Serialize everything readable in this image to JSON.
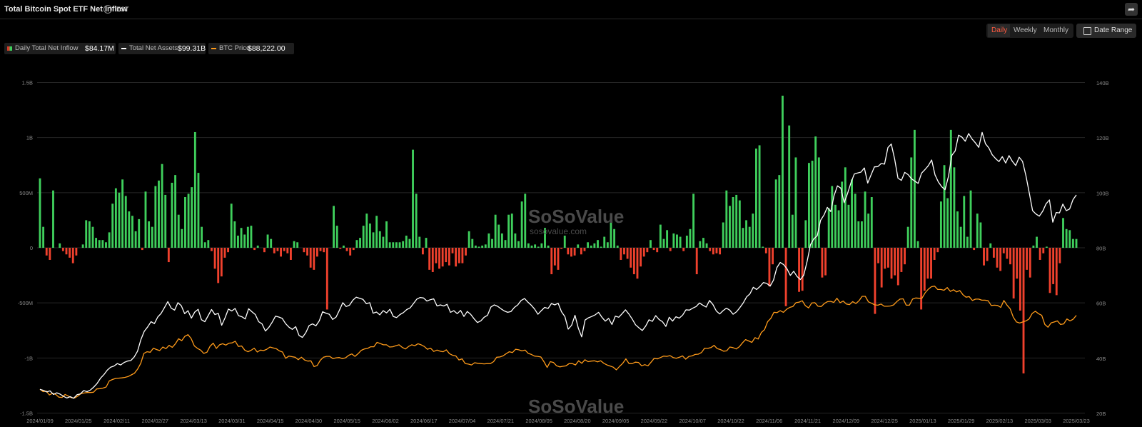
{
  "header": {
    "title": "Total Bitcoin Spot ETF Net Inflow",
    "timezone": "EST"
  },
  "controls": {
    "periods": [
      "Daily",
      "Weekly",
      "Monthly"
    ],
    "active_period": "Daily",
    "date_range_label": "Date Range"
  },
  "legend": [
    {
      "label": "Daily Total Net Inflow",
      "value": "$84.17M"
    },
    {
      "label": "Total Net Assets",
      "value": "$99.31B"
    },
    {
      "label": "BTC Price",
      "value": "$88,222.00"
    }
  ],
  "watermark": {
    "brand": "SoSoValue",
    "site": "sosovalue.com"
  },
  "colors": {
    "inflow_positive": "#3fcf5c",
    "inflow_negative": "#f0412d",
    "net_assets": "#ffffff",
    "btc_price": "#ff9b1a",
    "active_tab": "#ff5a40"
  },
  "chart_data": {
    "type": "bar+line",
    "left_axis": {
      "ticks": [
        "1.5B",
        "1B",
        "500M",
        "0",
        "-500M",
        "-1B",
        "-1.5B"
      ],
      "range": [
        -1.5,
        1.5
      ],
      "unit": "B USD"
    },
    "right_axis": {
      "ticks": [
        "140B",
        "120B",
        "100B",
        "80B",
        "60B",
        "40B",
        "20B"
      ],
      "range": [
        20,
        140
      ],
      "unit": "B USD"
    },
    "x_ticks": [
      "2024/01/09",
      "2024/01/25",
      "2024/02/11",
      "2024/02/27",
      "2024/03/13",
      "2024/03/31",
      "2024/04/15",
      "2024/04/30",
      "2024/05/15",
      "2024/06/02",
      "2024/06/17",
      "2024/07/04",
      "2024/07/21",
      "2024/08/05",
      "2024/08/20",
      "2024/09/05",
      "2024/09/22",
      "2024/10/07",
      "2024/10/22",
      "2024/11/06",
      "2024/11/21",
      "2024/12/09",
      "2024/12/25",
      "2025/01/13",
      "2025/01/29",
      "2025/02/13",
      "2025/03/03",
      "2025/03/23"
    ],
    "grid": true,
    "series": [
      {
        "name": "Daily Total Net Inflow",
        "kind": "bar",
        "axis": "left",
        "values": [
          0.63,
          0.19,
          -0.07,
          -0.11,
          0.52,
          0,
          0.04,
          -0.03,
          -0.06,
          -0.09,
          -0.14,
          -0.07,
          0,
          0.03,
          0.25,
          0.24,
          0.19,
          0.09,
          0.07,
          0.07,
          0.05,
          0.14,
          0.4,
          0.54,
          0.5,
          0.62,
          0.47,
          0.33,
          0.29,
          0.15,
          0.26,
          -0.02,
          0.51,
          0.24,
          0.19,
          0.56,
          0.61,
          0.76,
          0.48,
          -0.13,
          0.59,
          0.66,
          0.3,
          0.17,
          0.46,
          0.49,
          0.55,
          1.05,
          0.68,
          0.19,
          0.05,
          0.07,
          -0.03,
          -0.19,
          -0.32,
          -0.26,
          -0.09,
          -0.04,
          0.4,
          0.24,
          0.11,
          0.18,
          0.12,
          0.19,
          0.2,
          -0.02,
          0.02,
          0,
          -0.04,
          0.12,
          0.08,
          -0.05,
          -0.03,
          -0.08,
          -0.03,
          -0.05,
          -0.11,
          0.06,
          0.05,
          0,
          -0.04,
          -0.07,
          -0.18,
          -0.2,
          -0.08,
          -0.03,
          -0.04,
          -0.56,
          0,
          0.38,
          0.2,
          -0.01,
          0.02,
          -0.03,
          -0.07,
          -0.02,
          0.07,
          0.09,
          0.2,
          0.31,
          0.22,
          0.14,
          0.29,
          0.15,
          0.1,
          0.24,
          0.05,
          0.05,
          0.05,
          0.05,
          0.06,
          0.11,
          0.08,
          0.89,
          0.49,
          0.1,
          -0.06,
          0.09,
          -0.2,
          -0.22,
          -0.14,
          -0.19,
          -0.17,
          -0.13,
          -0.16,
          -0.05,
          -0.17,
          -0.14,
          -0.14,
          -0.07,
          0.15,
          0.08,
          0.02,
          0.01,
          0.02,
          0.03,
          0.13,
          0.08,
          0.3,
          0.21,
          0.13,
          0.07,
          0.3,
          0.31,
          0.13,
          0.06,
          0.42,
          0.49,
          0.04,
          0.02,
          0.03,
          0.01,
          0.04,
          0.18,
          0.02,
          -0.24,
          -0.16,
          -0.2,
          -0.01,
          0.11,
          -0.06,
          -0.08,
          -0.07,
          0.03,
          -0.06,
          -0.03,
          0.05,
          0.02,
          0.04,
          0.07,
          0.01,
          0.1,
          0.05,
          0.25,
          0.17,
          0.02,
          -0.11,
          -0.06,
          -0.1,
          -0.18,
          -0.24,
          -0.28,
          -0.17,
          -0.08,
          -0.04,
          0.07,
          -0.02,
          -0.04,
          0.21,
          0.08,
          0.16,
          -0.03,
          0.13,
          0.12,
          0.1,
          -0.03,
          0.11,
          0.17,
          0.49,
          -0.24,
          0.06,
          0.09,
          0.04,
          -0.03,
          -0.06,
          -0.05,
          -0.06,
          0.23,
          0.52,
          0.38,
          0.46,
          0.48,
          0.43,
          0.18,
          0.25,
          0.19,
          0.31,
          0.9,
          0.93,
          0.01,
          -0.05,
          -0.35,
          -0.15,
          0.62,
          0.66,
          1.38,
          -0.53,
          1.11,
          0.3,
          0.82,
          -0.4,
          -0.39,
          0.25,
          0.77,
          0.79,
          1.01,
          0.82,
          -0.27,
          -0.25,
          0.36,
          0.56,
          0.39,
          0.34,
          0.6,
          0.73,
          0.39,
          0.62,
          0.49,
          0.24,
          0.24,
          0.51,
          0.31,
          0.46,
          -0.6,
          -0.14,
          -0.36,
          -0.19,
          -0.18,
          -0.28,
          -0.25,
          -0.34,
          -0.22,
          -0.15,
          0.19,
          0.82,
          1.07,
          0.06,
          -0.56,
          -0.39,
          -0.28,
          -0.28,
          -0.11,
          -0.04,
          0.42,
          0.75,
          0.45,
          1.07,
          0.73,
          0.33,
          0.19,
          0.47,
          0.1,
          0.52,
          -0.02,
          0.31,
          0.23,
          -0.16,
          -0.12,
          0.04,
          -0.09,
          -0.18,
          -0.21,
          -0.05,
          -0.1,
          -0.15,
          -0.46,
          -0.28,
          -0.57,
          -1.14,
          -0.2,
          -0.27,
          0.02,
          0.1,
          -0.11,
          -0.05,
          0.01,
          -0.41,
          -0.33,
          -0.43,
          -0.14,
          0.27,
          0.17,
          0.16,
          0.08,
          0.08
        ]
      },
      {
        "name": "Total Net Assets",
        "kind": "line",
        "axis": "right",
        "values": [
          28.7,
          28.4,
          27.8,
          28.2,
          26.9,
          27.5,
          27.0,
          26.2,
          25.6,
          26.1,
          25.5,
          26.8,
          27.1,
          28.3,
          27.9,
          28.5,
          29.6,
          30.9,
          32.8,
          34.1,
          35.7,
          36.8,
          37.2,
          38.1,
          37.6,
          38.5,
          39.0,
          39.2,
          40.5,
          42.6,
          46.8,
          49.8,
          51.4,
          53.3,
          52.6,
          55.0,
          56.3,
          58.4,
          60.6,
          58.2,
          57.5,
          60.2,
          59.1,
          56.2,
          57.3,
          54.6,
          56.8,
          57.8,
          54.0,
          53.3,
          55.5,
          57.7,
          55.9,
          56.3,
          52.0,
          54.7,
          57.9,
          57.2,
          58.1,
          55.5,
          55.1,
          54.3,
          58.0,
          56.9,
          55.9,
          53.3,
          52.5,
          49.9,
          51.2,
          53.1,
          55.3,
          55.0,
          54.5,
          52.6,
          51.3,
          50.5,
          51.5,
          48.3,
          47.6,
          49.3,
          51.9,
          52.5,
          51.8,
          53.6,
          56.9,
          56.4,
          56.0,
          54.1,
          55.0,
          57.5,
          60.2,
          58.8,
          59.3,
          61.1,
          62.2,
          61.8,
          61.4,
          59.8,
          60.2,
          56.4,
          56.8,
          55.8,
          57.3,
          56.5,
          57.8,
          55.2,
          54.8,
          55.9,
          56.6,
          57.7,
          58.3,
          59.9,
          61.5,
          62.1,
          61.9,
          60.8,
          61.3,
          61.6,
          59.0,
          59.4,
          59.0,
          59.6,
          56.7,
          57.3,
          56.2,
          57.4,
          55.2,
          57.0,
          56.0,
          54.4,
          53.0,
          53.6,
          54.9,
          55.6,
          58.6,
          59.4,
          58.9,
          58.0,
          57.2,
          56.7,
          57.0,
          58.5,
          59.4,
          61.0,
          61.7,
          60.4,
          59.3,
          57.9,
          56.0,
          57.3,
          58.5,
          58.1,
          59.9,
          59.4,
          60.0,
          56.9,
          55.2,
          50.6,
          52.0,
          55.6,
          50.9,
          47.8,
          53.9,
          54.7,
          55.2,
          55.8,
          56.7,
          54.9,
          53.5,
          54.5,
          52.3,
          55.3,
          54.9,
          56.2,
          57.6,
          56.1,
          54.3,
          52.2,
          51.1,
          50.1,
          51.7,
          54.0,
          53.4,
          55.5,
          54.1,
          53.3,
          51.6,
          54.9,
          53.5,
          55.1,
          54.6,
          55.7,
          57.6,
          57.5,
          58.2,
          58.8,
          60.1,
          59.3,
          58.6,
          61.0,
          59.5,
          57.2,
          56.1,
          57.3,
          58.2,
          57.5,
          56.0,
          56.9,
          58.4,
          60.1,
          62.3,
          63.4,
          65.8,
          65.0,
          66.1,
          67.5,
          67.2,
          66.2,
          68.4,
          72.9,
          74.8,
          74.0,
          72.5,
          70.1,
          71.6,
          69.7,
          68.6,
          70.2,
          75.3,
          81.3,
          83.4,
          84.5,
          90.1,
          92.0,
          94.8,
          93.3,
          99.1,
          102.6,
          101.8,
          96.5,
          99.8,
          103.6,
          106.9,
          107.3,
          107.6,
          109.1,
          103.6,
          106.6,
          109.5,
          109.6,
          110.7,
          110.5,
          116.5,
          117.8,
          112.4,
          105.4,
          104.6,
          107.5,
          106.7,
          105.2,
          104.3,
          103.5,
          107.2,
          108.5,
          109.9,
          112.0,
          106.6,
          104.0,
          102.3,
          101.2,
          106.1,
          113.7,
          115.3,
          121.0,
          120.3,
          118.8,
          121.6,
          119.6,
          118.2,
          116.6,
          122.0,
          117.9,
          116.4,
          113.9,
          112.5,
          111.4,
          113.2,
          110.9,
          113.6,
          111.5,
          110.0,
          113.0,
          111.5,
          106.4,
          100.1,
          93.6,
          92.4,
          91.6,
          93.4,
          96.1,
          97.5,
          89.4,
          92.9,
          92.8,
          96.0,
          93.6,
          94.2,
          97.6,
          99.3
        ]
      },
      {
        "name": "BTC Price",
        "kind": "line",
        "axis": "right",
        "values": [
          28.8,
          27.9,
          28.1,
          26.7,
          27.3,
          26.9,
          25.9,
          25.8,
          26.9,
          26.3,
          25.7,
          25.6,
          26.3,
          27.2,
          27.4,
          27.6,
          27.6,
          27.7,
          28.9,
          29.0,
          29.2,
          29.6,
          31.8,
          32.3,
          32.7,
          32.8,
          32.9,
          33.1,
          33.4,
          34.0,
          34.6,
          36.1,
          38.2,
          41.8,
          42.4,
          42.2,
          43.7,
          43.2,
          42.8,
          44.1,
          43.5,
          44.7,
          44.0,
          45.3,
          47.1,
          46.4,
          48.0,
          48.6,
          47.2,
          44.5,
          43.6,
          43.0,
          41.8,
          42.2,
          44.4,
          45.5,
          43.6,
          44.9,
          45.3,
          44.8,
          45.5,
          45.6,
          46.2,
          44.3,
          44.5,
          43.0,
          42.4,
          42.9,
          43.7,
          42.3,
          43.0,
          42.8,
          43.3,
          44.1,
          43.8,
          43.5,
          42.7,
          42.3,
          40.0,
          40.8,
          40.6,
          40.4,
          39.5,
          40.4,
          39.4,
          39.0,
          39.1,
          37.0,
          37.4,
          39.3,
          40.4,
          40.7,
          40.7,
          39.9,
          40.2,
          40.3,
          39.9,
          40.2,
          41.1,
          41.6,
          40.7,
          41.7,
          42.9,
          43.4,
          43.6,
          44.2,
          44.2,
          45.8,
          45.4,
          44.9,
          44.9,
          44.1,
          44.2,
          44.6,
          44.9,
          44.0,
          43.4,
          44.3,
          44.9,
          44.6,
          45.3,
          44.9,
          44.3,
          43.3,
          43.7,
          42.5,
          43.0,
          42.6,
          42.4,
          43.1,
          41.7,
          41.1,
          40.9,
          39.4,
          39.8,
          38.1,
          37.9,
          37.6,
          38.4,
          38.2,
          38.1,
          38.0,
          38.1,
          38.1,
          38.8,
          40.4,
          40.5,
          40.9,
          41.7,
          42.4,
          42.1,
          43.3,
          43.1,
          42.7,
          43.0,
          41.8,
          41.4,
          40.8,
          40.7,
          40.5,
          38.8,
          36.7,
          38.8,
          38.5,
          37.3,
          36.9,
          37.1,
          37.3,
          38.1,
          38.1,
          37.6,
          39.1,
          38.2,
          39.5,
          38.8,
          39.0,
          39.1,
          38.7,
          39.1,
          38.2,
          37.6,
          37.2,
          36.8,
          35.8,
          37.1,
          38.2,
          39.8,
          38.1,
          38.1,
          38.6,
          38.5,
          37.3,
          37.7,
          37.3,
          38.6,
          40.0,
          39.8,
          40.3,
          40.8,
          40.7,
          41.0,
          40.3,
          40.0,
          40.4,
          40.9,
          39.7,
          40.7,
          40.9,
          41.4,
          41.5,
          42.1,
          43.7,
          43.6,
          43.9,
          44.7,
          43.5,
          43.2,
          42.6,
          42.7,
          44.1,
          43.9,
          43.4,
          44.2,
          45.6,
          46.8,
          46.3,
          45.8,
          47.5,
          47.0,
          49.4,
          50.4,
          53.3,
          54.5,
          56.7,
          56.6,
          57.3,
          56.7,
          57.8,
          58.5,
          58.8,
          60.2,
          60.4,
          60.9,
          59.1,
          58.3,
          60.1,
          60.2,
          58.9,
          58.8,
          59.9,
          60.6,
          60.7,
          60.3,
          61.8,
          60.2,
          60.8,
          59.7,
          59.5,
          60.6,
          59.9,
          60.9,
          62.5,
          62.5,
          60.5,
          60.0,
          59.4,
          59.3,
          59.7,
          58.9,
          58.9,
          59.0,
          59.4,
          60.6,
          61.5,
          61.6,
          59.3,
          59.3,
          61.5,
          61.9,
          61.8,
          61.8,
          63.8,
          65.1,
          66.0,
          66.2,
          65.0,
          65.0,
          64.7,
          65.7,
          64.3,
          64.9,
          64.1,
          64.6,
          63.1,
          62.2,
          62.4,
          61.0,
          61.5,
          61.5,
          61.1,
          61.1,
          60.9,
          59.2,
          59.3,
          59.2,
          58.5,
          61.0,
          59.3,
          58.0,
          54.9,
          53.2,
          52.8,
          53.2,
          53.6,
          54.3,
          56.3,
          57.1,
          56.2,
          55.6,
          52.3,
          51.3,
          52.9,
          53.2,
          53.6,
          52.3,
          52.5,
          54.3,
          53.6,
          54.2,
          55.6
        ]
      }
    ]
  }
}
